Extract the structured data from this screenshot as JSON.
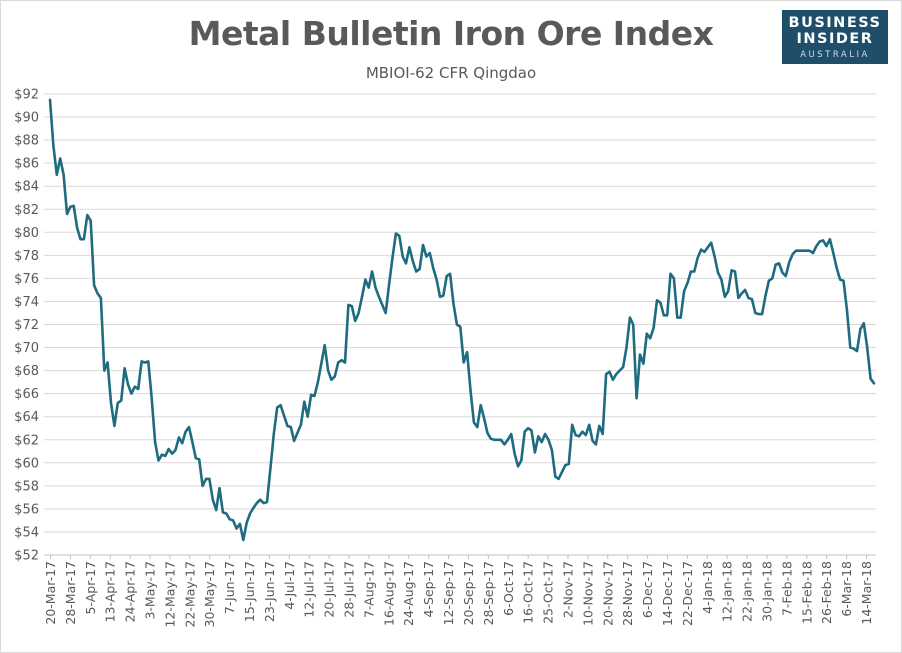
{
  "header": {
    "title": "Metal Bulletin Iron Ore Index",
    "subtitle": "MBIOI-62 CFR Qingdao"
  },
  "logo": {
    "line1": "BUSINESS",
    "line2": "INSIDER",
    "line3": "AUSTRALIA"
  },
  "colors": {
    "line": "#1f6b80",
    "grid": "#d9d9d9",
    "text": "#595959",
    "logo_bg": "#1f4e6b"
  },
  "chart_data": {
    "type": "line",
    "title": "Metal Bulletin Iron Ore Index",
    "subtitle": "MBIOI-62 CFR Qingdao",
    "xlabel": "",
    "ylabel": "",
    "ylim": [
      52,
      92
    ],
    "y_ticks": [
      "$52",
      "$54",
      "$56",
      "$58",
      "$60",
      "$62",
      "$64",
      "$66",
      "$68",
      "$70",
      "$72",
      "$74",
      "$76",
      "$78",
      "$80",
      "$82",
      "$84",
      "$86",
      "$88",
      "$90",
      "$92"
    ],
    "x_ticks": [
      "20-Mar-17",
      "28-Mar-17",
      "5-Apr-17",
      "13-Apr-17",
      "24-Apr-17",
      "3-May-17",
      "12-May-17",
      "22-May-17",
      "30-May-17",
      "7-Jun-17",
      "15-Jun-17",
      "23-Jun-17",
      "4-Jul-17",
      "12-Jul-17",
      "20-Jul-17",
      "28-Jul-17",
      "7-Aug-17",
      "16-Aug-17",
      "24-Aug-17",
      "4-Sep-17",
      "12-Sep-17",
      "20-Sep-17",
      "28-Sep-17",
      "6-Oct-17",
      "16-Oct-17",
      "25-Oct-17",
      "2-Nov-17",
      "10-Nov-17",
      "20-Nov-17",
      "28-Nov-17",
      "6-Dec-17",
      "14-Dec-17",
      "22-Dec-17",
      "4-Jan-18",
      "12-Jan-18",
      "22-Jan-18",
      "30-Jan-18",
      "7-Feb-18",
      "15-Feb-18",
      "26-Feb-18",
      "6-Mar-18",
      "14-Mar-18"
    ],
    "grid": true,
    "legend": "none",
    "series": [
      {
        "values": [
          91.5,
          87.5,
          85,
          86.4,
          85,
          81.6,
          82.2,
          82.3,
          80.4,
          79.4,
          79.4,
          81.5,
          81,
          75.4,
          74.7,
          74.3,
          68,
          68.7,
          65.2,
          63.2,
          65.2,
          65.4,
          68.2,
          66.8,
          66,
          66.6,
          66.4,
          68.8,
          68.7,
          68.8,
          65.6,
          61.8,
          60.2,
          60.7,
          60.6,
          61.2,
          60.8,
          61.1,
          62.2,
          61.7,
          62.7,
          63.1,
          61.8,
          60.4,
          60.3,
          58,
          58.6,
          58.6,
          56.8,
          55.9,
          57.8,
          55.7,
          55.6,
          55.1,
          55,
          54.3,
          54.7,
          53.3,
          54.8,
          55.6,
          56.1,
          56.5,
          56.8,
          56.5,
          56.6,
          59.5,
          62.5,
          64.8,
          65,
          64.1,
          63.2,
          63.1,
          61.9,
          62.6,
          63.3,
          65.3,
          64,
          65.9,
          65.8,
          67,
          68.6,
          70.2,
          68,
          67.2,
          67.5,
          68.7,
          68.9,
          68.7,
          73.7,
          73.6,
          72.3,
          73,
          74.4,
          75.9,
          75.2,
          76.6,
          75.2,
          74.4,
          73.7,
          73,
          75.5,
          77.8,
          79.9,
          79.7,
          77.9,
          77.3,
          78.7,
          77.5,
          76.6,
          76.8,
          78.9,
          77.9,
          78.2,
          76.9,
          75.9,
          74.4,
          74.5,
          76.2,
          76.4,
          73.8,
          72,
          71.8,
          68.7,
          69.6,
          66.3,
          63.5,
          63.1,
          65,
          63.9,
          62.6,
          62.1,
          62,
          62,
          62,
          61.6,
          62,
          62.5,
          60.8,
          59.7,
          60.2,
          62.7,
          63,
          62.8,
          60.9,
          62.3,
          61.8,
          62.5,
          62,
          61.1,
          58.8,
          58.6,
          59.2,
          59.8,
          59.9,
          63.3,
          62.4,
          62.3,
          62.7,
          62.4,
          63.3,
          61.9,
          61.6,
          63.2,
          62.5,
          67.7,
          67.9,
          67.2,
          67.7,
          68,
          68.3,
          70,
          72.6,
          72,
          65.6,
          69.4,
          68.6,
          71.2,
          70.8,
          71.7,
          74.1,
          73.9,
          72.8,
          72.8,
          76.4,
          76,
          72.6,
          72.6,
          74.9,
          75.6,
          76.6,
          76.6,
          77.8,
          78.5,
          78.3,
          78.7,
          79.1,
          77.9,
          76.5,
          75.9,
          74.4,
          74.9,
          76.7,
          76.6,
          74.3,
          74.7,
          75,
          74.3,
          74.2,
          73,
          72.9,
          72.9,
          74.5,
          75.8,
          76,
          77.2,
          77.3,
          76.5,
          76.2,
          77.4,
          78.1,
          78.4,
          78.4,
          78.4,
          78.4,
          78.4,
          78.2,
          78.8,
          79.2,
          79.3,
          78.8,
          79.4,
          78.2,
          76.9,
          75.9,
          75.8,
          73.3,
          70,
          69.9,
          69.7,
          71.6,
          72.1,
          70,
          67.3,
          66.9
        ]
      }
    ]
  }
}
